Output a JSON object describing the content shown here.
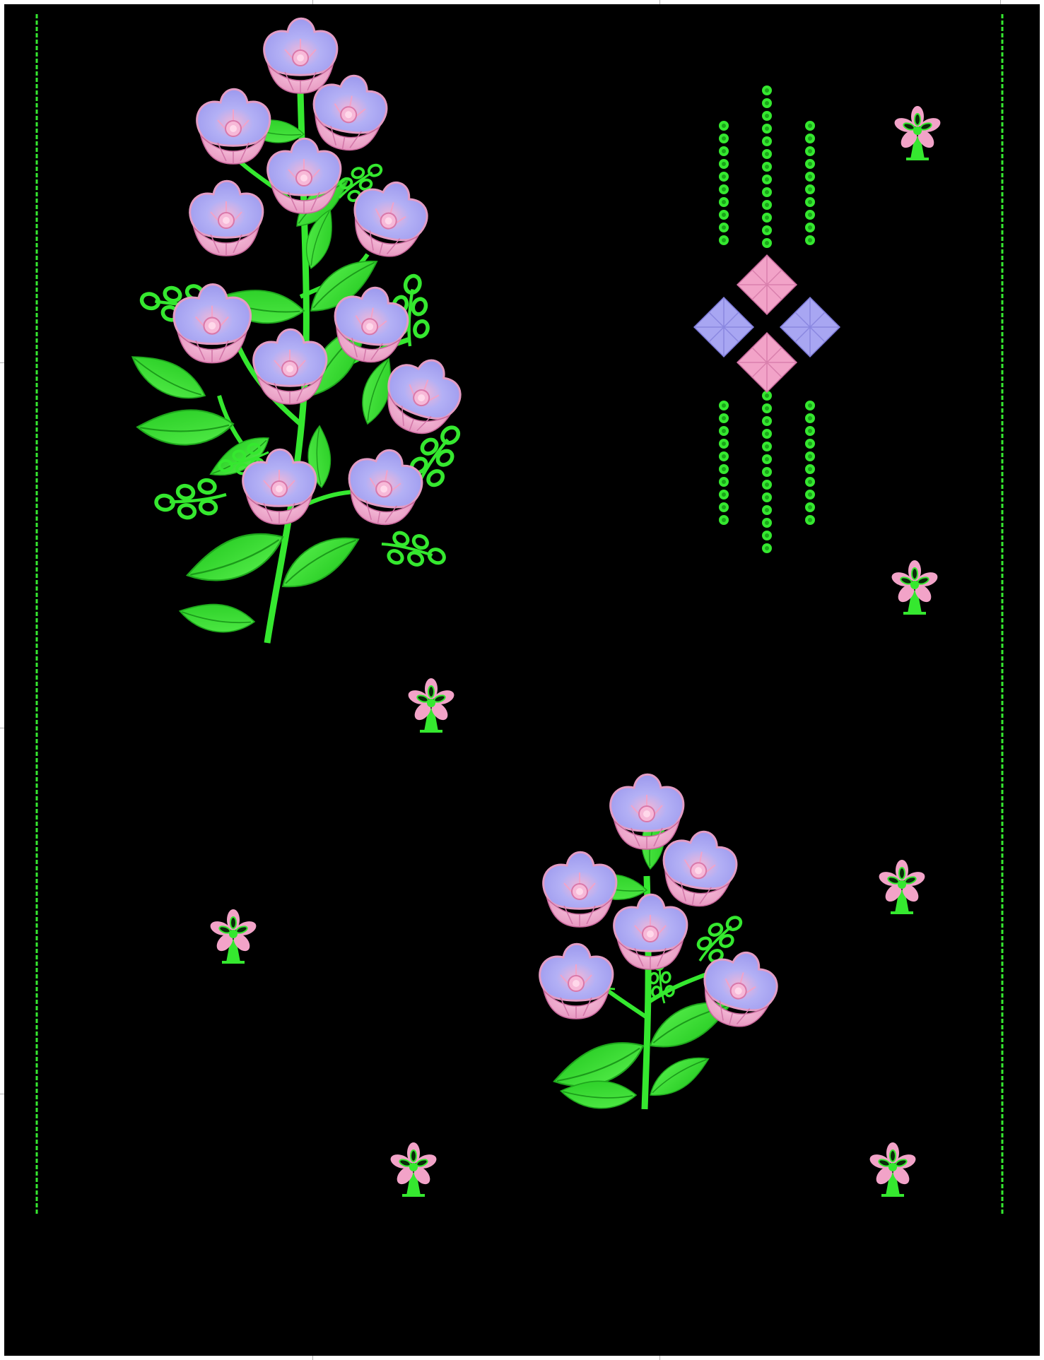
{
  "design": {
    "background": "#000000",
    "page_border": "#ffffff",
    "thread_colors": {
      "green": "#35e82f",
      "pink": "#f2a3c8",
      "lavender": "#a8a6f2",
      "dark_pink": "#e07bb0"
    },
    "motifs": [
      "border-line-left",
      "border-line-right",
      "large-floral-bouquet",
      "small-floral-bouquet",
      "bead-column-group",
      "diamond-cluster",
      "small-flower-butti"
    ]
  }
}
